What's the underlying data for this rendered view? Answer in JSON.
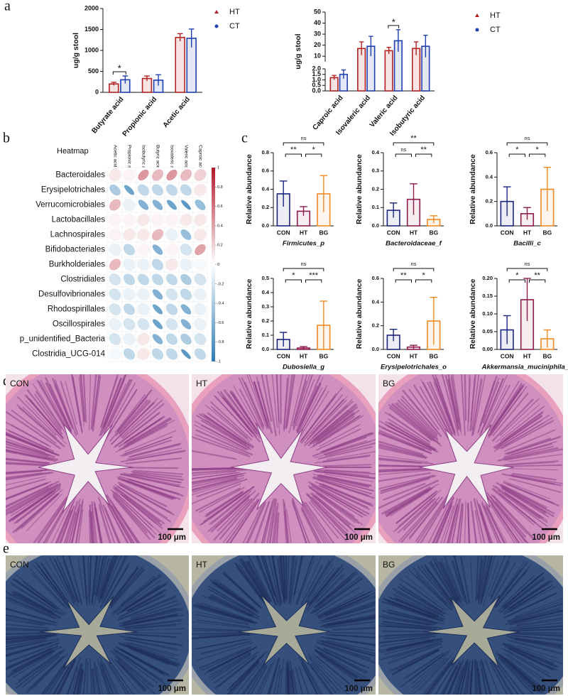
{
  "panel_labels": [
    "a",
    "b",
    "c",
    "d",
    "e"
  ],
  "chart_data": [
    {
      "type": "bar",
      "ylabel": "ug/g stool",
      "categories": [
        "Butyrate acid",
        "Propionic acid",
        "Acetic acid"
      ],
      "series": [
        {
          "name": "HT",
          "color": "#b22222",
          "marker": "triangle",
          "values": [
            200,
            330,
            1310
          ],
          "errors": [
            40,
            60,
            90
          ]
        },
        {
          "name": "CT",
          "color": "#1f3fb0",
          "marker": "circle",
          "values": [
            300,
            290,
            1290
          ],
          "errors": [
            90,
            130,
            220
          ]
        }
      ],
      "ylim": [
        0,
        2000
      ],
      "yticks": [
        0,
        500,
        1000,
        1500,
        2000
      ],
      "significance": [
        {
          "category": "Butyrate acid",
          "label": "*"
        }
      ]
    },
    {
      "type": "bar",
      "ylabel": "ug/g stool",
      "categories": [
        "Caproic acid",
        "Isovaleric acid",
        "Valeric acid",
        "Isobutyric acid"
      ],
      "series": [
        {
          "name": "HT",
          "color": "#b22222",
          "marker": "triangle",
          "values": [
            1.2,
            17,
            15,
            17
          ],
          "errors": [
            0.2,
            6,
            3,
            6
          ]
        },
        {
          "name": "CT",
          "color": "#1f3fb0",
          "marker": "circle",
          "values": [
            1.5,
            19,
            24,
            19
          ],
          "errors": [
            0.4,
            9,
            10,
            10
          ]
        }
      ],
      "ylim": [
        0,
        50
      ],
      "ybreak": [
        2,
        5
      ],
      "yticks": [
        {
          "value": 0,
          "label": "0.0"
        },
        {
          "value": 0.5,
          "label": "0.5"
        },
        {
          "value": 1,
          "label": "1.0"
        },
        {
          "value": 1.5,
          "label": "1.5"
        },
        {
          "value": 2,
          "label": "2.0"
        },
        10,
        20,
        30,
        40,
        50
      ],
      "significance": [
        {
          "category": "Valeric acid",
          "label": "*"
        }
      ]
    },
    {
      "type": "heatmap",
      "title": "Heatmap",
      "columns": [
        "Acetic acid",
        "Propionic acid",
        "Isobutyric acid",
        "Butyric acid",
        "Isovaleric acid",
        "Valeric acid",
        "Caproic acid"
      ],
      "rows": [
        "Bacteroidales",
        "Erysipelotrichales",
        "Verrucomicrobiales",
        "Lactobacillales",
        "Lachnospirales",
        "Bifidobacteriales",
        "Burkholderiales",
        "Clostridiales",
        "Desulfovibrionales",
        "Rhodospirillales",
        "Oscillospirales",
        "p_unidentified_Bacteria",
        "Clostridia_UCG-014"
      ],
      "values": [
        [
          0.1,
          0.05,
          0.45,
          0.3,
          0.45,
          0.3,
          0.2
        ],
        [
          -0.4,
          -0.7,
          -0.3,
          -0.3,
          -0.3,
          -0.3,
          0.1
        ],
        [
          0.3,
          -0.1,
          -0.6,
          -0.6,
          -0.7,
          -0.8,
          -0.5
        ],
        [
          0.05,
          0.05,
          0.1,
          0.05,
          0.05,
          0.1,
          0.1
        ],
        [
          0.05,
          0.1,
          0.1,
          0.3,
          -0.1,
          -0.5,
          0.1
        ],
        [
          -0.1,
          -0.3,
          0.05,
          -0.6,
          0.05,
          -0.2,
          0.4
        ],
        [
          0.3,
          -0.1,
          -0.1,
          -0.3,
          0.1,
          -0.1,
          -0.05
        ],
        [
          -0.2,
          -0.3,
          -0.3,
          -0.3,
          -0.3,
          -0.4,
          -0.2
        ],
        [
          -0.2,
          -0.1,
          -0.1,
          -0.6,
          -0.2,
          -0.3,
          -0.1
        ],
        [
          -0.2,
          -0.3,
          -0.1,
          -0.7,
          -0.3,
          -0.6,
          -0.1
        ],
        [
          -0.1,
          -0.2,
          -0.2,
          -0.7,
          -0.2,
          -0.6,
          -0.1
        ],
        [
          -0.2,
          -0.1,
          0.1,
          -0.6,
          -0.3,
          -0.4,
          -0.2
        ],
        [
          -0.05,
          -0.3,
          0.1,
          -0.3,
          -0.3,
          -0.8,
          -0.3
        ]
      ],
      "zlim": [
        -1,
        1
      ],
      "colorbar_ticks": [
        1,
        0.8,
        0.6,
        0.4,
        0.2,
        0,
        -0.2,
        -0.4,
        -0.6,
        -0.8,
        -1
      ]
    },
    {
      "type": "bar",
      "title": "Firmicutes_p",
      "ylabel": "Relative abundance",
      "categories": [
        "CON",
        "HT",
        "BG"
      ],
      "colors": [
        "#1a237e",
        "#8e1b4d",
        "#f08a24"
      ],
      "values": [
        0.35,
        0.16,
        0.35
      ],
      "errors": [
        0.14,
        0.05,
        0.2
      ],
      "ylim": [
        0,
        0.8
      ],
      "yticks": [
        {
          "value": 0,
          "label": "0.0"
        },
        0.2,
        0.4,
        0.6,
        0.8
      ],
      "significance": [
        {
          "from": "CON",
          "to": "HT",
          "label": "**"
        },
        {
          "from": "HT",
          "to": "BG",
          "label": "*"
        },
        {
          "from": "CON",
          "to": "BG",
          "label": "ns"
        }
      ]
    },
    {
      "type": "bar",
      "title": "Bacteroidaceae_f",
      "ylabel": "Relative abundance",
      "categories": [
        "CON",
        "HT",
        "BG"
      ],
      "colors": [
        "#1a237e",
        "#8e1b4d",
        "#f08a24"
      ],
      "values": [
        0.085,
        0.145,
        0.035
      ],
      "errors": [
        0.04,
        0.085,
        0.02
      ],
      "ylim": [
        0,
        0.4
      ],
      "yticks": [
        {
          "value": 0,
          "label": "0.0"
        },
        0.1,
        0.2,
        0.3,
        0.4
      ],
      "significance": [
        {
          "from": "CON",
          "to": "HT",
          "label": "ns"
        },
        {
          "from": "HT",
          "to": "BG",
          "label": "**"
        },
        {
          "from": "CON",
          "to": "BG",
          "label": "**"
        }
      ]
    },
    {
      "type": "bar",
      "title": "Bacilli_c",
      "ylabel": "Relative abundance",
      "categories": [
        "CON",
        "HT",
        "BG"
      ],
      "colors": [
        "#1a237e",
        "#8e1b4d",
        "#f08a24"
      ],
      "values": [
        0.2,
        0.1,
        0.3
      ],
      "errors": [
        0.12,
        0.05,
        0.18
      ],
      "ylim": [
        0,
        0.6
      ],
      "yticks": [
        {
          "value": 0,
          "label": "0.0"
        },
        0.2,
        0.4,
        0.6
      ],
      "significance": [
        {
          "from": "CON",
          "to": "HT",
          "label": "*"
        },
        {
          "from": "HT",
          "to": "BG",
          "label": "*"
        },
        {
          "from": "CON",
          "to": "BG",
          "label": "ns"
        }
      ]
    },
    {
      "type": "bar",
      "title": "Dubosiella_g",
      "ylabel": "Relative abundance",
      "categories": [
        "CON",
        "HT",
        "BG"
      ],
      "colors": [
        "#1a237e",
        "#8e1b4d",
        "#f08a24"
      ],
      "values": [
        0.07,
        0.01,
        0.17
      ],
      "errors": [
        0.05,
        0.01,
        0.17
      ],
      "ylim": [
        0,
        0.5
      ],
      "yticks": [
        {
          "value": 0,
          "label": "0.0"
        },
        0.1,
        0.2,
        0.3,
        0.4,
        0.5
      ],
      "significance": [
        {
          "from": "CON",
          "to": "HT",
          "label": "*"
        },
        {
          "from": "HT",
          "to": "BG",
          "label": "***"
        },
        {
          "from": "CON",
          "to": "BG",
          "label": "ns"
        }
      ]
    },
    {
      "type": "bar",
      "title": "Erysipelotrichales_o",
      "ylabel": "Relative abundance",
      "categories": [
        "CON",
        "HT",
        "BG"
      ],
      "colors": [
        "#1a237e",
        "#8e1b4d",
        "#f08a24"
      ],
      "values": [
        0.12,
        0.02,
        0.24
      ],
      "errors": [
        0.05,
        0.015,
        0.2
      ],
      "ylim": [
        0,
        0.6
      ],
      "yticks": [
        {
          "value": 0,
          "label": "0.0"
        },
        0.2,
        0.4,
        0.6
      ],
      "significance": [
        {
          "from": "CON",
          "to": "HT",
          "label": "**"
        },
        {
          "from": "HT",
          "to": "BG",
          "label": "*"
        },
        {
          "from": "CON",
          "to": "BG",
          "label": "ns"
        }
      ]
    },
    {
      "type": "bar",
      "title": "Akkermansia_muciniphila_s",
      "ylabel": "Relative abundance",
      "categories": [
        "CON",
        "HT",
        "BG"
      ],
      "colors": [
        "#1a237e",
        "#8e1b4d",
        "#f08a24"
      ],
      "values": [
        0.055,
        0.14,
        0.03
      ],
      "errors": [
        0.04,
        0.06,
        0.025
      ],
      "ylim": [
        0,
        0.2
      ],
      "yticks": [
        {
          "value": 0,
          "label": "0.00"
        },
        0.05,
        {
          "value": 0.1,
          "label": "0.10"
        },
        0.15,
        {
          "value": 0.2,
          "label": "0.20"
        }
      ],
      "significance": [
        {
          "from": "CON",
          "to": "HT",
          "label": "*"
        },
        {
          "from": "HT",
          "to": "BG",
          "label": "**"
        },
        {
          "from": "CON",
          "to": "BG",
          "label": "ns"
        }
      ]
    }
  ],
  "histology": {
    "d_labels": [
      "CON",
      "HT",
      "BG"
    ],
    "e_labels": [
      "CON",
      "HT",
      "BG"
    ],
    "scale_bar": "100 μm"
  }
}
